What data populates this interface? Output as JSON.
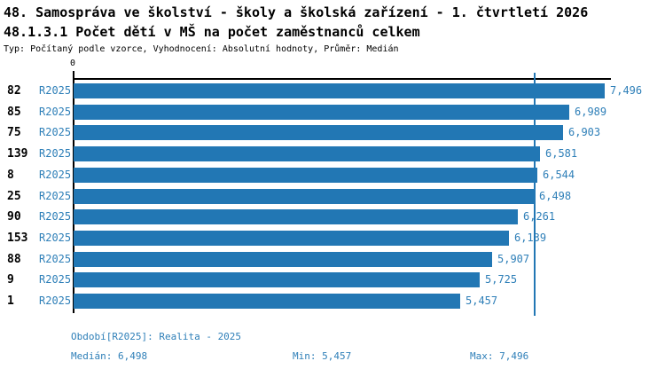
{
  "header": {
    "title_line1": "48. Samospráva ve školství - školy a školská zařízení - 1. čtvrtletí 2026",
    "title_line2": "48.1.3.1 Počet dětí v MŠ na počet zaměstnanců celkem",
    "subtitle": "Typ: Počítaný podle vzorce, Vyhodnocení: Absolutní hodnoty, Průměr: Medián"
  },
  "chart_data": {
    "type": "bar",
    "orientation": "horizontal",
    "title": "48.1.3.1 Počet dětí v MŠ na počet zaměstnanců celkem",
    "axis_origin_label": "0",
    "series_label": "R2025",
    "categories": [
      "82",
      "85",
      "75",
      "139",
      "8",
      "25",
      "90",
      "153",
      "88",
      "9",
      "1"
    ],
    "values": [
      7496,
      6989,
      6903,
      6581,
      6544,
      6498,
      6261,
      6139,
      5907,
      5725,
      5457
    ],
    "value_labels": [
      "7,496",
      "6,989",
      "6,903",
      "6,581",
      "6,544",
      "6,498",
      "6,261",
      "6,139",
      "5,907",
      "5,725",
      "5,457"
    ],
    "xlim": [
      0,
      7580
    ],
    "median": 6498,
    "min": 5457,
    "max": 7496,
    "grid": false,
    "legend_position": "bottom",
    "bar_color": "#2277b4",
    "median_line_color": "#2277b4",
    "label_color": "#2e7fb8",
    "axis_color": "#000000"
  },
  "footer": {
    "period": "Období[R2025]: Realita - 2025",
    "median": "Medián: 6,498",
    "min": "Min: 5,457",
    "max": "Max: 7,496"
  },
  "colors": {
    "background": "#ffffff",
    "accent_blue": "#2277b4",
    "text_blue": "#2e7fb8",
    "text_black": "#000000"
  }
}
